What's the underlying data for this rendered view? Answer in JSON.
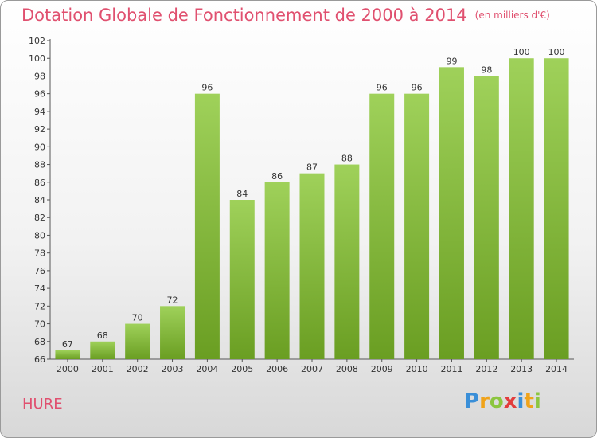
{
  "header": {
    "title": "Dotation Globale de Fonctionnement de 2000 à 2014",
    "unit": "(en milliers d'€)"
  },
  "footer": {
    "place": "HURE",
    "logo": "Proxiti"
  },
  "colors": {
    "title": "#e0506f",
    "bar_light": "#9fd15a",
    "bar_dark": "#6a9e22"
  },
  "chart_data": {
    "type": "bar",
    "title": "Dotation Globale de Fonctionnement de 2000 à 2014",
    "xlabel": "",
    "ylabel": "",
    "ylim": [
      66,
      102
    ],
    "yticks": [
      66,
      68,
      70,
      72,
      74,
      76,
      78,
      80,
      82,
      84,
      86,
      88,
      90,
      92,
      94,
      96,
      98,
      100,
      102
    ],
    "grid": false,
    "categories": [
      "2000",
      "2001",
      "2002",
      "2003",
      "2004",
      "2005",
      "2006",
      "2007",
      "2008",
      "2009",
      "2010",
      "2011",
      "2012",
      "2013",
      "2014"
    ],
    "values": [
      67,
      68,
      70,
      72,
      96,
      84,
      86,
      87,
      88,
      96,
      96,
      99,
      98,
      100,
      100
    ]
  }
}
